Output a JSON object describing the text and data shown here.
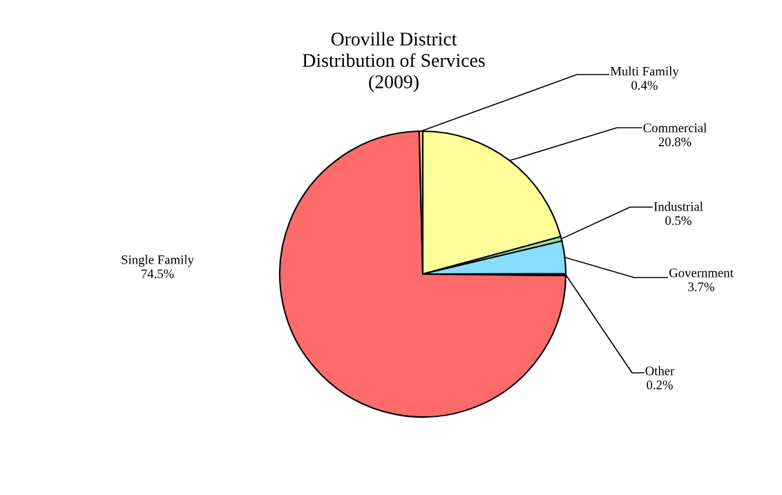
{
  "chart_data": {
    "type": "pie",
    "title": "Oroville District\nDistribution of Services\n(2009)",
    "categories": [
      "Commercial",
      "Industrial",
      "Government",
      "Other",
      "Single Family",
      "Multi Family"
    ],
    "values": [
      20.8,
      0.5,
      3.7,
      0.2,
      74.5,
      0.4
    ],
    "value_labels": [
      "20.8%",
      "0.5%",
      "3.7%",
      "0.2%",
      "74.5%",
      "0.4%"
    ],
    "colors": [
      "#ffff99",
      "#99e6a0",
      "#88ddff",
      "#1f3864",
      "#ff6b6b",
      "#ffc44d"
    ],
    "legend": false
  }
}
